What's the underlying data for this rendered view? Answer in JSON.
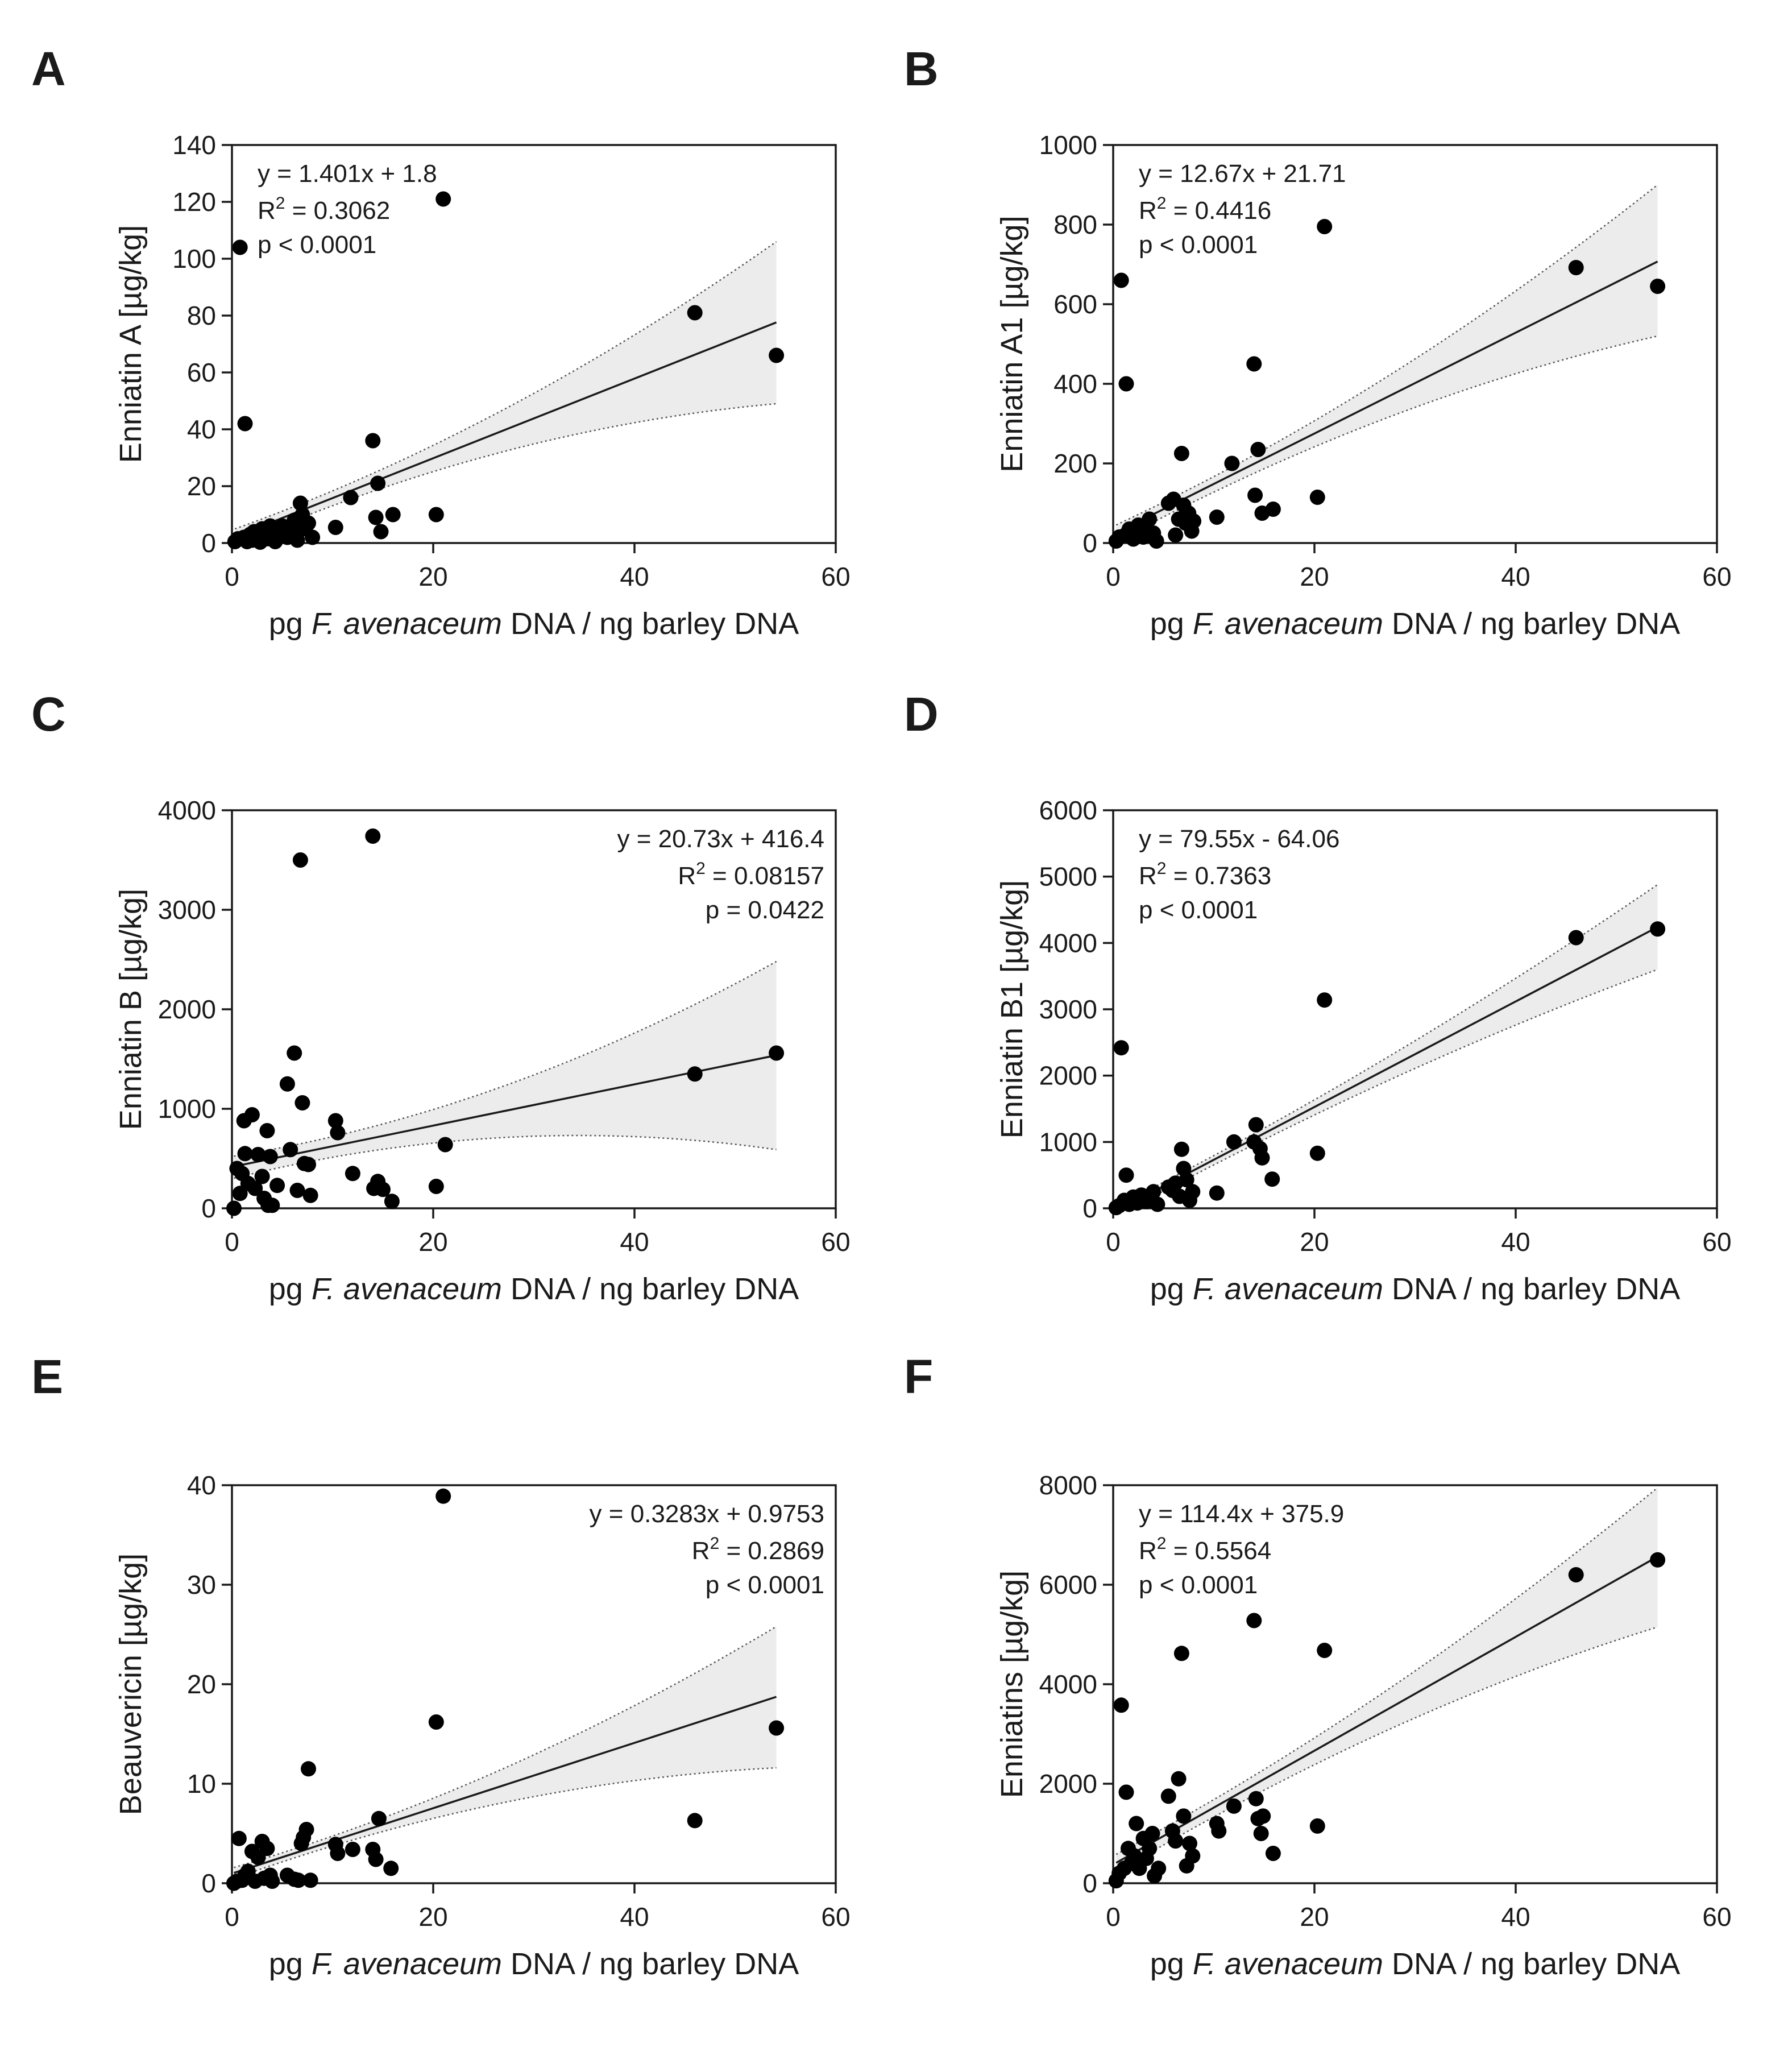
{
  "figure": {
    "xlabel_parts": [
      "pg ",
      "F. avenaceum",
      " DNA / ng barley DNA"
    ],
    "colors": {
      "axis": "#1a1a1a",
      "points": "#000000",
      "band_fill": "#ececec",
      "fit_line": "#1a1a1a",
      "band_edge": "#555555"
    }
  },
  "chart_data": [
    {
      "panel": "A",
      "type": "scatter",
      "ylabel": "Enniatin A [µg/kg]",
      "xlim": [
        0,
        60
      ],
      "ylim": [
        0,
        140
      ],
      "xticks": [
        0,
        20,
        40,
        60
      ],
      "yticks": [
        0,
        20,
        40,
        60,
        80,
        100,
        120,
        140
      ],
      "annotation": {
        "equation": "y = 1.401x + 1.8",
        "r2_value": " = 0.3062",
        "p": "p < 0.0001",
        "position": "top-left"
      },
      "fit": {
        "slope": 1.401,
        "intercept": 1.8,
        "band_at_x0": [
          -5,
          9
        ],
        "band_at_xmax": [
          49,
          106
        ]
      },
      "points": [
        [
          0.3,
          0.5
        ],
        [
          0.6,
          1.5
        ],
        [
          0.8,
          104
        ],
        [
          1.2,
          2
        ],
        [
          1.3,
          42
        ],
        [
          1.5,
          0.5
        ],
        [
          1.8,
          3
        ],
        [
          2,
          1
        ],
        [
          2.2,
          4
        ],
        [
          2.5,
          2
        ],
        [
          2.8,
          0.3
        ],
        [
          3,
          5
        ],
        [
          3.3,
          3
        ],
        [
          3.5,
          1.5
        ],
        [
          3.8,
          6
        ],
        [
          4,
          2.5
        ],
        [
          4.3,
          0.5
        ],
        [
          4.6,
          3.5
        ],
        [
          5,
          6
        ],
        [
          5.5,
          2
        ],
        [
          6,
          4
        ],
        [
          6.2,
          8
        ],
        [
          6.5,
          1
        ],
        [
          6.8,
          14
        ],
        [
          7,
          10
        ],
        [
          7.3,
          5
        ],
        [
          7.6,
          7
        ],
        [
          8,
          2
        ],
        [
          10.3,
          5.5
        ],
        [
          11.8,
          16
        ],
        [
          14,
          36
        ],
        [
          14.3,
          9
        ],
        [
          14.5,
          21
        ],
        [
          14.8,
          4
        ],
        [
          16,
          10
        ],
        [
          20.3,
          10
        ],
        [
          21,
          121
        ],
        [
          46,
          81
        ],
        [
          54.1,
          66
        ]
      ]
    },
    {
      "panel": "B",
      "type": "scatter",
      "ylabel": "Enniatin A1 [µg/kg]",
      "xlim": [
        0,
        60
      ],
      "ylim": [
        0,
        1000
      ],
      "xticks": [
        0,
        20,
        40,
        60
      ],
      "yticks": [
        0,
        200,
        400,
        600,
        800,
        1000
      ],
      "annotation": {
        "equation": "y  = 12.67x + 21.71",
        "r2_value": " = 0.4416",
        "p": "p < 0.0001",
        "position": "top-left"
      },
      "fit": {
        "slope": 12.67,
        "intercept": 21.71,
        "band_at_x0": [
          -30,
          75
        ],
        "band_at_xmax": [
          520,
          900
        ]
      },
      "points": [
        [
          0.3,
          5
        ],
        [
          0.6,
          15
        ],
        [
          0.8,
          660
        ],
        [
          1.2,
          20
        ],
        [
          1.3,
          400
        ],
        [
          1.6,
          35
        ],
        [
          2,
          10
        ],
        [
          2.2,
          30
        ],
        [
          2.5,
          45
        ],
        [
          2.8,
          20
        ],
        [
          3,
          15
        ],
        [
          3.3,
          40
        ],
        [
          3.6,
          60
        ],
        [
          4,
          25
        ],
        [
          4.3,
          5
        ],
        [
          5.5,
          100
        ],
        [
          6,
          110
        ],
        [
          6.2,
          20
        ],
        [
          6.5,
          60
        ],
        [
          6.8,
          225
        ],
        [
          7,
          95
        ],
        [
          7.2,
          50
        ],
        [
          7.5,
          75
        ],
        [
          7.8,
          30
        ],
        [
          8,
          55
        ],
        [
          10.3,
          65
        ],
        [
          11.8,
          200
        ],
        [
          14,
          450
        ],
        [
          14.1,
          120
        ],
        [
          14.4,
          235
        ],
        [
          14.8,
          75
        ],
        [
          15.9,
          85
        ],
        [
          20.3,
          115
        ],
        [
          21,
          795
        ],
        [
          46,
          692
        ],
        [
          54.1,
          645
        ]
      ]
    },
    {
      "panel": "C",
      "type": "scatter",
      "ylabel": "Enniatin B [µg/kg]",
      "xlim": [
        0,
        60
      ],
      "ylim": [
        0,
        4000
      ],
      "xticks": [
        0,
        20,
        40,
        60
      ],
      "yticks": [
        0,
        1000,
        2000,
        3000,
        4000
      ],
      "annotation": {
        "equation": "y = 20.73x + 416.4",
        "r2_value": " = 0.08157",
        "p": "p = 0.0422",
        "position": "top-right"
      },
      "fit": {
        "slope": 20.73,
        "intercept": 416.4,
        "band_at_x0": [
          120,
          680
        ],
        "band_at_xmax": [
          590,
          2480
        ]
      },
      "points": [
        [
          0.2,
          0
        ],
        [
          0.5,
          400
        ],
        [
          0.8,
          150
        ],
        [
          1,
          350
        ],
        [
          1.2,
          880
        ],
        [
          1.3,
          550
        ],
        [
          1.6,
          250
        ],
        [
          2,
          940
        ],
        [
          2.3,
          200
        ],
        [
          2.6,
          540
        ],
        [
          3,
          320
        ],
        [
          3.2,
          100
        ],
        [
          3.5,
          780
        ],
        [
          3.6,
          30
        ],
        [
          3.8,
          520
        ],
        [
          4,
          30
        ],
        [
          4.5,
          230
        ],
        [
          5.5,
          1250
        ],
        [
          5.8,
          590
        ],
        [
          6.2,
          1560
        ],
        [
          6.5,
          180
        ],
        [
          6.8,
          3500
        ],
        [
          7,
          1060
        ],
        [
          7.2,
          450
        ],
        [
          7.6,
          440
        ],
        [
          7.8,
          130
        ],
        [
          10.3,
          880
        ],
        [
          10.5,
          760
        ],
        [
          12,
          350
        ],
        [
          14,
          3740
        ],
        [
          14.1,
          200
        ],
        [
          14.5,
          270
        ],
        [
          15,
          190
        ],
        [
          15.9,
          70
        ],
        [
          20.3,
          220
        ],
        [
          21.2,
          640
        ],
        [
          46,
          1350
        ],
        [
          54.1,
          1560
        ]
      ]
    },
    {
      "panel": "D",
      "type": "scatter",
      "ylabel": "Enniatin B1 [µg/kg]",
      "xlim": [
        0,
        60
      ],
      "ylim": [
        0,
        6000
      ],
      "xticks": [
        0,
        20,
        40,
        60
      ],
      "yticks": [
        0,
        1000,
        2000,
        3000,
        4000,
        5000,
        6000
      ],
      "annotation": {
        "equation": "y = 79.55x - 64.06",
        "r2_value": " = 0.7363",
        "p": "p < 0.0001",
        "position": "top-left"
      },
      "fit": {
        "slope": 79.55,
        "intercept": -64.06,
        "band_at_x0": [
          -250,
          130
        ],
        "band_at_xmax": [
          3600,
          4880
        ]
      },
      "points": [
        [
          0.3,
          10
        ],
        [
          0.6,
          40
        ],
        [
          0.8,
          2420
        ],
        [
          1.1,
          120
        ],
        [
          1.3,
          500
        ],
        [
          1.6,
          60
        ],
        [
          2,
          170
        ],
        [
          2.4,
          80
        ],
        [
          2.8,
          200
        ],
        [
          3.3,
          100
        ],
        [
          3.6,
          150
        ],
        [
          4,
          250
        ],
        [
          4.4,
          60
        ],
        [
          5.5,
          320
        ],
        [
          5.9,
          270
        ],
        [
          6.2,
          380
        ],
        [
          6.6,
          180
        ],
        [
          6.8,
          890
        ],
        [
          7,
          600
        ],
        [
          7.3,
          430
        ],
        [
          7.6,
          120
        ],
        [
          7.9,
          250
        ],
        [
          10.3,
          230
        ],
        [
          12,
          1000
        ],
        [
          14,
          1000
        ],
        [
          14.2,
          1260
        ],
        [
          14.6,
          900
        ],
        [
          14.8,
          760
        ],
        [
          15.8,
          440
        ],
        [
          20.3,
          830
        ],
        [
          21,
          3140
        ],
        [
          46,
          4080
        ],
        [
          54.1,
          4210
        ]
      ]
    },
    {
      "panel": "E",
      "type": "scatter",
      "ylabel": "Beauvericin [µg/kg]",
      "xlim": [
        0,
        60
      ],
      "ylim": [
        0,
        40
      ],
      "xticks": [
        0,
        20,
        40,
        60
      ],
      "yticks": [
        0,
        10,
        20,
        30,
        40
      ],
      "annotation": {
        "equation": "y = 0.3283x + 0.9753",
        "r2_value": " = 0.2869",
        "p": "p < 0.0001",
        "position": "top-right"
      },
      "fit": {
        "slope": 0.3283,
        "intercept": 0.9753,
        "band_at_x0": [
          -0.3,
          2.3
        ],
        "band_at_xmax": [
          11.6,
          25.8
        ]
      },
      "points": [
        [
          0.2,
          0
        ],
        [
          0.5,
          0.2
        ],
        [
          0.7,
          4.5
        ],
        [
          1,
          0.3
        ],
        [
          1.3,
          0.8
        ],
        [
          1.6,
          1.2
        ],
        [
          2,
          3.2
        ],
        [
          2.3,
          0.2
        ],
        [
          2.6,
          2.6
        ],
        [
          3,
          4.2
        ],
        [
          3.2,
          0.5
        ],
        [
          3.5,
          3.5
        ],
        [
          3.8,
          0.8
        ],
        [
          4,
          0.2
        ],
        [
          5.5,
          0.8
        ],
        [
          6.2,
          0.4
        ],
        [
          6.6,
          0.3
        ],
        [
          6.9,
          4
        ],
        [
          7.1,
          4.6
        ],
        [
          7.4,
          5.4
        ],
        [
          7.6,
          11.5
        ],
        [
          7.8,
          0.3
        ],
        [
          10.3,
          3.9
        ],
        [
          10.5,
          3
        ],
        [
          12,
          3.4
        ],
        [
          14,
          3.4
        ],
        [
          14.3,
          2.4
        ],
        [
          14.6,
          6.5
        ],
        [
          15.8,
          1.5
        ],
        [
          20.3,
          16.2
        ],
        [
          21,
          38.9
        ],
        [
          46,
          6.3
        ],
        [
          54.1,
          15.6
        ]
      ]
    },
    {
      "panel": "F",
      "type": "scatter",
      "ylabel": "Enniatins [µg/kg]",
      "xlim": [
        0,
        60
      ],
      "ylim": [
        0,
        8000
      ],
      "xticks": [
        0,
        20,
        40,
        60
      ],
      "yticks": [
        0,
        2000,
        4000,
        6000,
        8000
      ],
      "annotation": {
        "equation": "y = 114.4x + 375.9",
        "r2_value": " = 0.5564",
        "p": "p < 0.0001",
        "position": "top-left"
      },
      "fit": {
        "slope": 114.4,
        "intercept": 375.9,
        "band_at_x0": [
          -100,
          850
        ],
        "band_at_xmax": [
          5150,
          7950
        ]
      },
      "points": [
        [
          0.3,
          50
        ],
        [
          0.6,
          200
        ],
        [
          0.8,
          3580
        ],
        [
          1.1,
          300
        ],
        [
          1.3,
          1830
        ],
        [
          1.5,
          700
        ],
        [
          1.8,
          400
        ],
        [
          2.1,
          550
        ],
        [
          2.3,
          1200
        ],
        [
          2.6,
          300
        ],
        [
          3,
          900
        ],
        [
          3.3,
          500
        ],
        [
          3.6,
          700
        ],
        [
          3.9,
          1000
        ],
        [
          4.1,
          150
        ],
        [
          4.5,
          300
        ],
        [
          5.5,
          1750
        ],
        [
          5.9,
          1050
        ],
        [
          6.2,
          850
        ],
        [
          6.5,
          2100
        ],
        [
          6.8,
          4620
        ],
        [
          7,
          1350
        ],
        [
          7.3,
          350
        ],
        [
          7.6,
          800
        ],
        [
          7.9,
          550
        ],
        [
          10.3,
          1200
        ],
        [
          10.5,
          1050
        ],
        [
          12,
          1550
        ],
        [
          14,
          5280
        ],
        [
          14.2,
          1700
        ],
        [
          14.4,
          1300
        ],
        [
          14.7,
          1000
        ],
        [
          14.9,
          1350
        ],
        [
          15.9,
          600
        ],
        [
          20.3,
          1150
        ],
        [
          21,
          4680
        ],
        [
          46,
          6200
        ],
        [
          54.1,
          6500
        ]
      ]
    }
  ]
}
